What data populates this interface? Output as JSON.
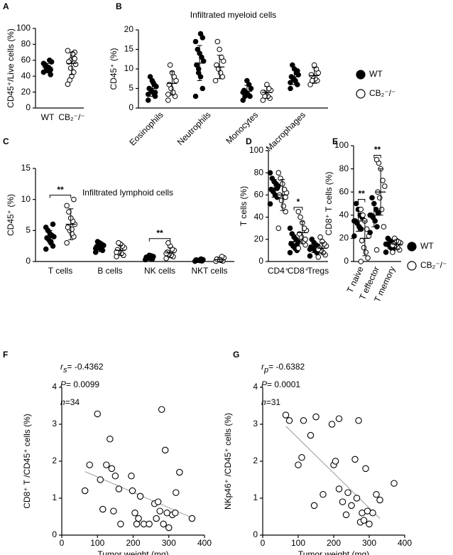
{
  "chart_data": [
    {
      "type": "dot",
      "panel": "A",
      "ylabel": "CD45⁺/Live cells (%)",
      "ylim": [
        0,
        100
      ],
      "yticks": [
        0,
        20,
        40,
        60,
        80,
        100
      ],
      "categories": [
        "WT",
        "CB₂⁻/⁻"
      ],
      "marker_fills": [
        "#000000",
        "#ffffff"
      ],
      "values": [
        [
          45,
          48,
          50,
          52,
          55,
          58,
          60,
          47,
          53,
          56,
          42,
          51,
          49
        ],
        [
          72,
          70,
          65,
          60,
          58,
          55,
          45,
          40,
          35,
          30,
          62,
          68,
          50
        ]
      ],
      "mean": [
        51,
        56
      ],
      "sd": [
        5,
        14
      ]
    },
    {
      "type": "dot",
      "panel": "B",
      "title": "Infiltrated myeloid cells",
      "ylabel": "CD45⁺ (%)",
      "ylim": [
        0,
        20
      ],
      "yticks": [
        0,
        5,
        10,
        15,
        20
      ],
      "xtick_rotation": -45,
      "legend": "right",
      "categories": [
        "Eosinophils",
        "Neutrophils",
        "Monocytes",
        "Macrophages"
      ],
      "series": [
        {
          "name": "WT",
          "color": "#000000",
          "fill": "#000000",
          "values": [
            [
              2,
              3,
              4,
              4.5,
              5,
              5.5,
              6,
              7,
              8,
              3.5,
              4,
              6.5
            ],
            [
              3,
              5,
              8,
              10,
              11,
              12,
              13,
              14,
              15,
              17,
              18,
              19,
              9
            ],
            [
              2,
              3,
              3.5,
              4,
              4.5,
              5,
              6,
              7,
              3,
              4
            ],
            [
              5,
              6,
              7,
              7.5,
              8,
              8.5,
              9,
              10,
              11,
              6.5,
              9.5
            ]
          ],
          "mean": [
            5,
            11.5,
            4.3,
            8
          ],
          "sd": [
            2,
            4.5,
            1.5,
            2
          ]
        },
        {
          "name": "CB₂⁻/⁻",
          "color": "#000000",
          "fill": "#ffffff",
          "values": [
            [
              2,
              3,
              4,
              5,
              6,
              7,
              8,
              9,
              11,
              3.5
            ],
            [
              7,
              8,
              9,
              10,
              11,
              12,
              13,
              15,
              17
            ],
            [
              2,
              2.5,
              3,
              3.5,
              4,
              4.5,
              5,
              6,
              3,
              4
            ],
            [
              6,
              7,
              7.5,
              8,
              8.5,
              9,
              10,
              11,
              7
            ]
          ],
          "mean": [
            6.3,
            10.5,
            4,
            8.3
          ],
          "sd": [
            3,
            3,
            1.5,
            2
          ]
        }
      ]
    },
    {
      "type": "dot",
      "panel": "C",
      "title": "Infiltrated lymphoid cells",
      "ylabel": "CD45⁺ (%)",
      "ylim": [
        0,
        15
      ],
      "yticks": [
        0,
        5,
        10,
        15
      ],
      "categories": [
        "T cells",
        "B cells",
        "NK cells",
        "NKT cells"
      ],
      "series": [
        {
          "name": "WT",
          "color": "#000000",
          "fill": "#000000",
          "values": [
            [
              2,
              2.5,
              3,
              3.5,
              3.8,
              4,
              4.2,
              4.5,
              5,
              5.5,
              6,
              3.2
            ],
            [
              1.5,
              1.8,
              2,
              2.2,
              2.4,
              2.6,
              2.8,
              3,
              3.2,
              2.1
            ],
            [
              0.3,
              0.4,
              0.5,
              0.6,
              0.7,
              0.8,
              0.9,
              1,
              0.55
            ],
            [
              0.05,
              0.1,
              0.15,
              0.2,
              0.25,
              0.3,
              0.4,
              0.2
            ]
          ],
          "mean": [
            4,
            2.3,
            0.6,
            0.2
          ],
          "sd": [
            1,
            0.7,
            0.3,
            0.2
          ]
        },
        {
          "name": "CB₂⁻/⁻",
          "color": "#000000",
          "fill": "#ffffff",
          "values": [
            [
              3,
              4,
              4.5,
              5,
              5.5,
              6,
              6.5,
              7,
              8,
              9,
              10,
              5.2
            ],
            [
              0.8,
              1,
              1.3,
              1.6,
              1.9,
              2.2,
              2.5,
              2.8,
              3,
              1.5
            ],
            [
              0.5,
              0.8,
              1,
              1.2,
              1.5,
              1.8,
              2,
              2.5,
              3,
              1.3
            ],
            [
              0.05,
              0.1,
              0.2,
              0.3,
              0.4,
              0.6,
              0.8,
              0.25
            ]
          ],
          "mean": [
            6,
            1.8,
            1.4,
            0.3
          ],
          "sd": [
            2.5,
            0.8,
            0.8,
            0.3
          ]
        }
      ],
      "significance": [
        {
          "category": "T cells",
          "label": "**"
        },
        {
          "category": "NK cells",
          "label": "**"
        }
      ]
    },
    {
      "type": "dot",
      "panel": "D",
      "ylabel": "T cells (%)",
      "ylim": [
        0,
        100
      ],
      "yticks": [
        0,
        20,
        40,
        60,
        80,
        100
      ],
      "categories": [
        "CD4⁺",
        "CD8⁺",
        "Tregs"
      ],
      "series": [
        {
          "name": "WT",
          "color": "#000000",
          "fill": "#000000",
          "values": [
            [
              52,
              58,
              60,
              63,
              65,
              68,
              70,
              72,
              75,
              80,
              66
            ],
            [
              8,
              10,
              12,
              14,
              16,
              18,
              20,
              22,
              25,
              30,
              15
            ],
            [
              5,
              8,
              10,
              12,
              13,
              14,
              15,
              17,
              20,
              11
            ]
          ],
          "mean": [
            66,
            18,
            13
          ],
          "sd": [
            8,
            6,
            5
          ]
        },
        {
          "name": "CB₂⁻/⁻",
          "color": "#000000",
          "fill": "#ffffff",
          "values": [
            [
              30,
              45,
              50,
              55,
              60,
              62,
              65,
              70,
              75,
              80,
              58
            ],
            [
              12,
              15,
              18,
              22,
              25,
              28,
              30,
              35,
              40,
              45,
              20
            ],
            [
              4,
              6,
              8,
              10,
              12,
              14,
              16,
              18,
              22,
              11
            ]
          ],
          "mean": [
            60,
            26,
            12
          ],
          "sd": [
            14,
            10,
            5
          ]
        }
      ],
      "significance": [
        {
          "category": "CD8⁺",
          "label": "*"
        }
      ]
    },
    {
      "type": "dot",
      "panel": "E",
      "ylabel": "CD8⁺ T cells (%)",
      "ylim": [
        0,
        100
      ],
      "yticks": [
        0,
        20,
        40,
        60,
        80,
        100
      ],
      "xtick_rotation": -65,
      "legend": "right",
      "categories": [
        "T naive",
        "T effector",
        "T memory"
      ],
      "series": [
        {
          "name": "WT",
          "color": "#000000",
          "fill": "#000000",
          "values": [
            [
              22,
              28,
              30,
              33,
              35,
              38,
              40,
              45,
              50,
              35
            ],
            [
              25,
              30,
              35,
              38,
              40,
              42,
              45,
              50,
              55,
              40
            ],
            [
              8,
              10,
              12,
              14,
              15,
              16,
              17,
              18,
              20,
              15
            ]
          ],
          "mean": [
            35,
            40,
            15
          ],
          "sd": [
            9,
            10,
            4
          ]
        },
        {
          "name": "CB₂⁻/⁻",
          "color": "#000000",
          "fill": "#ffffff",
          "values": [
            [
              0,
              3,
              8,
              12,
              18,
              22,
              28,
              35,
              40,
              45
            ],
            [
              10,
              30,
              45,
              55,
              60,
              65,
              70,
              80,
              85,
              88
            ],
            [
              8,
              10,
              12,
              14,
              15,
              16,
              17,
              18,
              20,
              14
            ]
          ],
          "mean": [
            20,
            60,
            15
          ],
          "sd": [
            15,
            20,
            4
          ]
        }
      ],
      "significance": [
        {
          "category": "T naive",
          "label": "**"
        },
        {
          "category": "T effector",
          "label": "**"
        }
      ]
    },
    {
      "type": "scatter",
      "panel": "F",
      "xlabel": "Tumor weight (mg)",
      "ylabel": "CD8⁺ T /CD45⁺ cells (%)",
      "xlim": [
        0,
        400
      ],
      "xticks": [
        0,
        100,
        200,
        300,
        400
      ],
      "ylim": [
        0,
        4
      ],
      "yticks": [
        0,
        1,
        2,
        3,
        4
      ],
      "stats": [
        {
          "symbol": "r",
          "subscript": "s",
          "text": "= -0.4362"
        },
        {
          "symbol": "P",
          "text": "= 0.0099"
        },
        {
          "symbol": "n",
          "text": "=34"
        }
      ],
      "trendline": {
        "x": [
          65,
          370
        ],
        "y": [
          1.72,
          0.45
        ],
        "color": "#999999"
      },
      "x": [
        65,
        78,
        100,
        108,
        115,
        125,
        135,
        140,
        145,
        150,
        160,
        165,
        195,
        198,
        205,
        210,
        215,
        220,
        230,
        245,
        260,
        265,
        270,
        275,
        280,
        285,
        290,
        295,
        300,
        310,
        318,
        320,
        330,
        365
      ],
      "y": [
        1.2,
        1.9,
        3.28,
        1.5,
        0.7,
        1.9,
        2.6,
        1.8,
        0.65,
        1.6,
        1.25,
        0.3,
        1.6,
        1.2,
        0.6,
        0.3,
        0.45,
        1.05,
        0.3,
        0.3,
        0.85,
        0.45,
        0.9,
        0.65,
        3.4,
        0.3,
        2.3,
        0.6,
        0.2,
        0.55,
        0.6,
        1.15,
        1.7,
        0.45
      ]
    },
    {
      "type": "scatter",
      "panel": "G",
      "xlabel": "Tumor weight (mg)",
      "ylabel": "NKp46⁺ /CD45⁺ cells (%)",
      "xlim": [
        0,
        400
      ],
      "xticks": [
        0,
        100,
        200,
        300,
        400
      ],
      "ylim": [
        0,
        4
      ],
      "yticks": [
        0,
        1,
        2,
        3,
        4
      ],
      "stats": [
        {
          "symbol": "r",
          "subscript": "p",
          "text": "= -0.6382"
        },
        {
          "symbol": "P",
          "text": "= 0.0001"
        },
        {
          "symbol": "n",
          "text": "=31"
        }
      ],
      "trendline": {
        "x": [
          65,
          330
        ],
        "y": [
          2.95,
          0.45
        ],
        "color": "#999999"
      },
      "x": [
        65,
        75,
        100,
        110,
        115,
        135,
        145,
        150,
        170,
        195,
        200,
        205,
        215,
        215,
        225,
        235,
        240,
        250,
        260,
        265,
        270,
        275,
        280,
        285,
        290,
        295,
        300,
        310,
        320,
        330,
        370
      ],
      "y": [
        3.25,
        3.1,
        1.9,
        2.1,
        3.1,
        2.7,
        0.8,
        3.2,
        1.1,
        3.0,
        1.9,
        2.0,
        3.15,
        1.25,
        0.9,
        0.55,
        1.15,
        0.8,
        2.05,
        1.0,
        3.1,
        0.35,
        0.6,
        0.4,
        1.8,
        0.65,
        0.3,
        0.6,
        1.1,
        0.95,
        1.4
      ]
    }
  ]
}
